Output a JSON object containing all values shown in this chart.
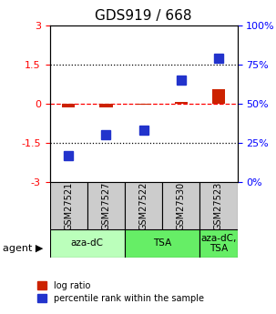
{
  "title": "GDS919 / 668",
  "samples": [
    "GSM27521",
    "GSM27527",
    "GSM27522",
    "GSM27530",
    "GSM27523"
  ],
  "log_ratios": [
    -0.15,
    -0.13,
    -0.05,
    0.07,
    0.55
  ],
  "percentile_ranks": [
    17,
    30,
    33,
    65,
    79
  ],
  "agents": [
    {
      "label": "aza-dC",
      "cols": [
        0,
        1
      ],
      "color": "#aaffaa"
    },
    {
      "label": "TSA",
      "cols": [
        2,
        3
      ],
      "color": "#66ee66"
    },
    {
      "label": "aza-dC,\nTSA",
      "cols": [
        4,
        4
      ],
      "color": "#66ee66"
    }
  ],
  "ylim_left": [
    -3,
    3
  ],
  "ylim_right": [
    0,
    100
  ],
  "yticks_left": [
    -3,
    -1.5,
    0,
    1.5,
    3
  ],
  "yticks_right": [
    0,
    25,
    50,
    75,
    100
  ],
  "ytick_labels_left": [
    "-3",
    "-1.5",
    "0",
    "1.5",
    "3"
  ],
  "ytick_labels_right": [
    "0%",
    "25%",
    "50%",
    "75%",
    "100%"
  ],
  "hlines": [
    -1.5,
    0,
    1.5
  ],
  "hline_colors": [
    "black",
    "red",
    "black"
  ],
  "hline_styles": [
    "dotted",
    "dashed",
    "dotted"
  ],
  "bar_color_red": "#cc2200",
  "bar_color_blue": "#2233cc",
  "sample_box_color": "#cccccc",
  "legend_red_label": "log ratio",
  "legend_blue_label": "percentile rank within the sample"
}
